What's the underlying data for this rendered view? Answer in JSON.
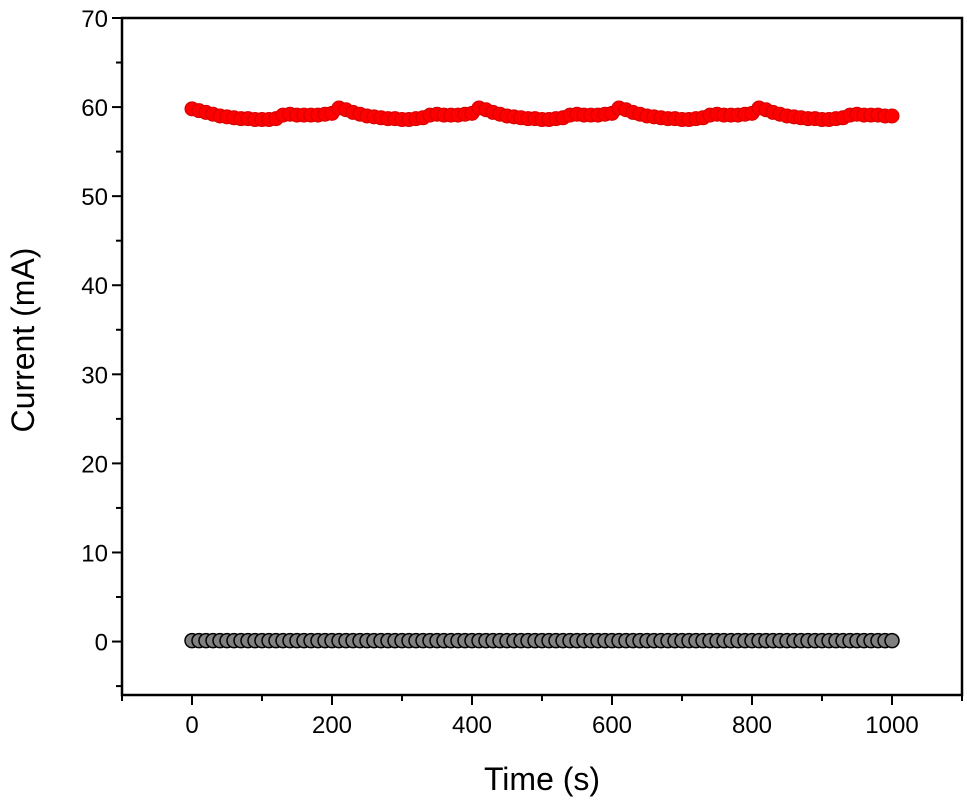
{
  "chart_data": {
    "type": "scatter",
    "title": "",
    "xlabel": "Time (s)",
    "ylabel": "Current (mA)",
    "xlim": [
      -100,
      1100
    ],
    "ylim": [
      -6,
      70
    ],
    "x_ticks": [
      0,
      200,
      400,
      600,
      800,
      1000
    ],
    "y_ticks": [
      0,
      10,
      20,
      30,
      40,
      50,
      60,
      70
    ],
    "x_tick_labels": [
      "0",
      "200",
      "400",
      "600",
      "800",
      "1000"
    ],
    "y_tick_labels": [
      "0",
      "10",
      "20",
      "30",
      "40",
      "50",
      "60",
      "70"
    ],
    "grid": false,
    "legend": "none",
    "series": [
      {
        "color": "#ff0000",
        "marker": "circle",
        "x": [
          0,
          10,
          20,
          30,
          40,
          50,
          60,
          70,
          80,
          90,
          100,
          110,
          120,
          130,
          140,
          150,
          160,
          170,
          180,
          190,
          200,
          210,
          220,
          230,
          240,
          250,
          260,
          270,
          280,
          290,
          300,
          310,
          320,
          330,
          340,
          350,
          360,
          370,
          380,
          390,
          400,
          410,
          420,
          430,
          440,
          450,
          460,
          470,
          480,
          490,
          500,
          510,
          520,
          530,
          540,
          550,
          560,
          570,
          580,
          590,
          600,
          610,
          620,
          630,
          640,
          650,
          660,
          670,
          680,
          690,
          700,
          710,
          720,
          730,
          740,
          750,
          760,
          770,
          780,
          790,
          800,
          810,
          820,
          830,
          840,
          850,
          860,
          870,
          880,
          890,
          900,
          910,
          920,
          930,
          940,
          950,
          960,
          970,
          980,
          990,
          1000
        ],
        "y": [
          59.8,
          59.6,
          59.4,
          59.2,
          59.0,
          58.9,
          58.8,
          58.7,
          58.7,
          58.6,
          58.6,
          58.6,
          58.7,
          59.1,
          59.2,
          59.1,
          59.1,
          59.1,
          59.1,
          59.2,
          59.3,
          59.9,
          59.7,
          59.4,
          59.2,
          59.0,
          58.9,
          58.8,
          58.7,
          58.7,
          58.6,
          58.6,
          58.7,
          58.8,
          59.1,
          59.2,
          59.1,
          59.1,
          59.1,
          59.2,
          59.3,
          59.9,
          59.7,
          59.4,
          59.2,
          59.0,
          58.9,
          58.8,
          58.7,
          58.7,
          58.6,
          58.6,
          58.7,
          58.8,
          59.1,
          59.2,
          59.1,
          59.1,
          59.1,
          59.2,
          59.3,
          59.9,
          59.7,
          59.4,
          59.2,
          59.0,
          58.9,
          58.8,
          58.7,
          58.7,
          58.6,
          58.6,
          58.7,
          58.8,
          59.1,
          59.2,
          59.1,
          59.1,
          59.1,
          59.2,
          59.3,
          59.9,
          59.7,
          59.4,
          59.2,
          59.0,
          58.9,
          58.8,
          58.7,
          58.7,
          58.6,
          58.6,
          58.7,
          58.8,
          59.1,
          59.2,
          59.1,
          59.1,
          59.1,
          59.0,
          59.0
        ]
      },
      {
        "color": "#808080",
        "marker": "circle",
        "x": [
          0,
          10,
          20,
          30,
          40,
          50,
          60,
          70,
          80,
          90,
          100,
          110,
          120,
          130,
          140,
          150,
          160,
          170,
          180,
          190,
          200,
          210,
          220,
          230,
          240,
          250,
          260,
          270,
          280,
          290,
          300,
          310,
          320,
          330,
          340,
          350,
          360,
          370,
          380,
          390,
          400,
          410,
          420,
          430,
          440,
          450,
          460,
          470,
          480,
          490,
          500,
          510,
          520,
          530,
          540,
          550,
          560,
          570,
          580,
          590,
          600,
          610,
          620,
          630,
          640,
          650,
          660,
          670,
          680,
          690,
          700,
          710,
          720,
          730,
          740,
          750,
          760,
          770,
          780,
          790,
          800,
          810,
          820,
          830,
          840,
          850,
          860,
          870,
          880,
          890,
          900,
          910,
          920,
          930,
          940,
          950,
          960,
          970,
          980,
          990,
          1000
        ],
        "y": [
          0.1,
          0.1,
          0.1,
          0.1,
          0.1,
          0.1,
          0.1,
          0.1,
          0.1,
          0.1,
          0.1,
          0.1,
          0.1,
          0.1,
          0.1,
          0.1,
          0.1,
          0.1,
          0.1,
          0.1,
          0.1,
          0.1,
          0.1,
          0.1,
          0.1,
          0.1,
          0.1,
          0.1,
          0.1,
          0.1,
          0.1,
          0.1,
          0.1,
          0.1,
          0.1,
          0.1,
          0.1,
          0.1,
          0.1,
          0.1,
          0.1,
          0.1,
          0.1,
          0.1,
          0.1,
          0.1,
          0.1,
          0.1,
          0.1,
          0.1,
          0.1,
          0.1,
          0.1,
          0.1,
          0.1,
          0.1,
          0.1,
          0.1,
          0.1,
          0.1,
          0.1,
          0.1,
          0.1,
          0.1,
          0.1,
          0.1,
          0.1,
          0.1,
          0.1,
          0.1,
          0.1,
          0.1,
          0.1,
          0.1,
          0.1,
          0.1,
          0.1,
          0.1,
          0.1,
          0.1,
          0.1,
          0.1,
          0.1,
          0.1,
          0.1,
          0.1,
          0.1,
          0.1,
          0.1,
          0.1,
          0.1,
          0.1,
          0.1,
          0.1,
          0.1,
          0.1,
          0.1,
          0.1,
          0.1,
          0.1,
          0.1
        ]
      }
    ]
  }
}
